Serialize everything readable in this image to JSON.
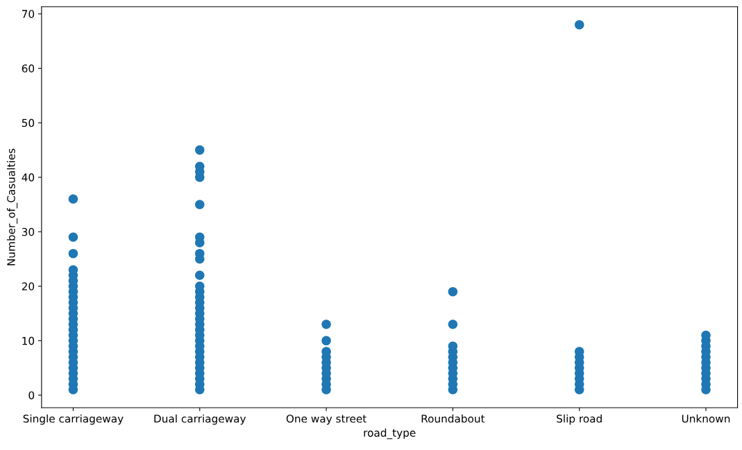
{
  "chart_data": {
    "type": "scatter",
    "xlabel": "road_type",
    "ylabel": "Number_of_Casualties",
    "categories": [
      "Single carriageway",
      "Dual carriageway",
      "One way street",
      "Roundabout",
      "Slip road",
      "Unknown"
    ],
    "series": [
      {
        "color": "#1f77b4",
        "x": [
          "Single carriageway",
          "Single carriageway",
          "Single carriageway",
          "Single carriageway",
          "Single carriageway",
          "Single carriageway",
          "Single carriageway",
          "Single carriageway",
          "Single carriageway",
          "Single carriageway",
          "Single carriageway",
          "Single carriageway",
          "Single carriageway",
          "Single carriageway",
          "Single carriageway",
          "Single carriageway",
          "Single carriageway",
          "Single carriageway",
          "Single carriageway",
          "Single carriageway",
          "Single carriageway",
          "Single carriageway",
          "Single carriageway",
          "Single carriageway",
          "Single carriageway",
          "Single carriageway",
          "Dual carriageway",
          "Dual carriageway",
          "Dual carriageway",
          "Dual carriageway",
          "Dual carriageway",
          "Dual carriageway",
          "Dual carriageway",
          "Dual carriageway",
          "Dual carriageway",
          "Dual carriageway",
          "Dual carriageway",
          "Dual carriageway",
          "Dual carriageway",
          "Dual carriageway",
          "Dual carriageway",
          "Dual carriageway",
          "Dual carriageway",
          "Dual carriageway",
          "Dual carriageway",
          "Dual carriageway",
          "Dual carriageway",
          "Dual carriageway",
          "Dual carriageway",
          "Dual carriageway",
          "Dual carriageway",
          "Dual carriageway",
          "Dual carriageway",
          "Dual carriageway",
          "Dual carriageway",
          "Dual carriageway",
          "One way street",
          "One way street",
          "One way street",
          "One way street",
          "One way street",
          "One way street",
          "One way street",
          "One way street",
          "One way street",
          "One way street",
          "Roundabout",
          "Roundabout",
          "Roundabout",
          "Roundabout",
          "Roundabout",
          "Roundabout",
          "Roundabout",
          "Roundabout",
          "Roundabout",
          "Roundabout",
          "Roundabout",
          "Slip road",
          "Slip road",
          "Slip road",
          "Slip road",
          "Slip road",
          "Slip road",
          "Slip road",
          "Slip road",
          "Slip road",
          "Unknown",
          "Unknown",
          "Unknown",
          "Unknown",
          "Unknown",
          "Unknown",
          "Unknown",
          "Unknown",
          "Unknown",
          "Unknown",
          "Unknown"
        ],
        "values": [
          1,
          2,
          3,
          4,
          5,
          6,
          7,
          8,
          9,
          10,
          11,
          12,
          13,
          14,
          15,
          16,
          17,
          18,
          19,
          20,
          21,
          22,
          23,
          26,
          29,
          36,
          1,
          2,
          3,
          4,
          5,
          6,
          7,
          8,
          9,
          10,
          11,
          12,
          13,
          14,
          15,
          16,
          17,
          18,
          19,
          20,
          22,
          25,
          26,
          28,
          29,
          35,
          40,
          41,
          42,
          45,
          1,
          2,
          3,
          4,
          5,
          6,
          7,
          8,
          10,
          13,
          1,
          2,
          3,
          4,
          5,
          6,
          7,
          8,
          9,
          13,
          19,
          1,
          2,
          3,
          4,
          5,
          6,
          7,
          8,
          68,
          1,
          2,
          3,
          4,
          5,
          6,
          7,
          8,
          9,
          10,
          11
        ]
      }
    ],
    "ylim": [
      -2.3,
      71.3
    ],
    "yticks": [
      0,
      10,
      20,
      30,
      40,
      50,
      60,
      70
    ],
    "marker": "circle"
  }
}
